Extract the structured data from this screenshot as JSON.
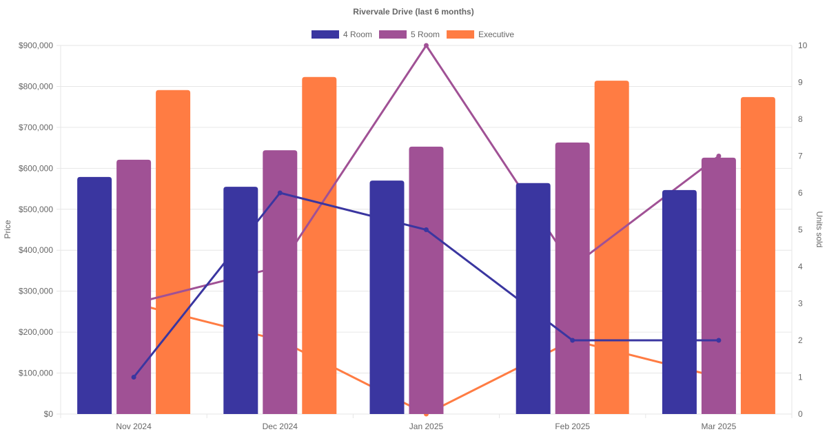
{
  "chart_data": {
    "type": "bar",
    "title": "Rivervale Drive (last 6 months)",
    "categories": [
      "Nov 2024",
      "Dec 2024",
      "Jan 2025",
      "Feb 2025",
      "Mar 2025"
    ],
    "ylabel": "Price",
    "y2label": "Units sold",
    "ylim": [
      0,
      900000
    ],
    "y2lim": [
      0,
      10
    ],
    "yticks": [
      "$0",
      "$100,000",
      "$200,000",
      "$300,000",
      "$400,000",
      "$500,000",
      "$600,000",
      "$700,000",
      "$800,000",
      "$900,000"
    ],
    "y2ticks": [
      "0",
      "1",
      "2",
      "3",
      "4",
      "5",
      "6",
      "7",
      "8",
      "9",
      "10"
    ],
    "grid": true,
    "legend_position": "top",
    "series": [
      {
        "name": "4 Room",
        "color": "#3a36a0",
        "price": [
          579000,
          555000,
          570000,
          564000,
          547000
        ],
        "units": [
          1,
          6,
          5,
          2,
          2
        ]
      },
      {
        "name": "5 Room",
        "color": "#a05195",
        "price": [
          621000,
          644000,
          653000,
          663000,
          626000
        ],
        "units": [
          3,
          4,
          10,
          4,
          7
        ]
      },
      {
        "name": "Executive",
        "color": "#ff7c43",
        "price": [
          791000,
          823000,
          null,
          814000,
          774000
        ],
        "units": [
          3,
          2,
          0,
          2,
          1
        ]
      }
    ]
  }
}
